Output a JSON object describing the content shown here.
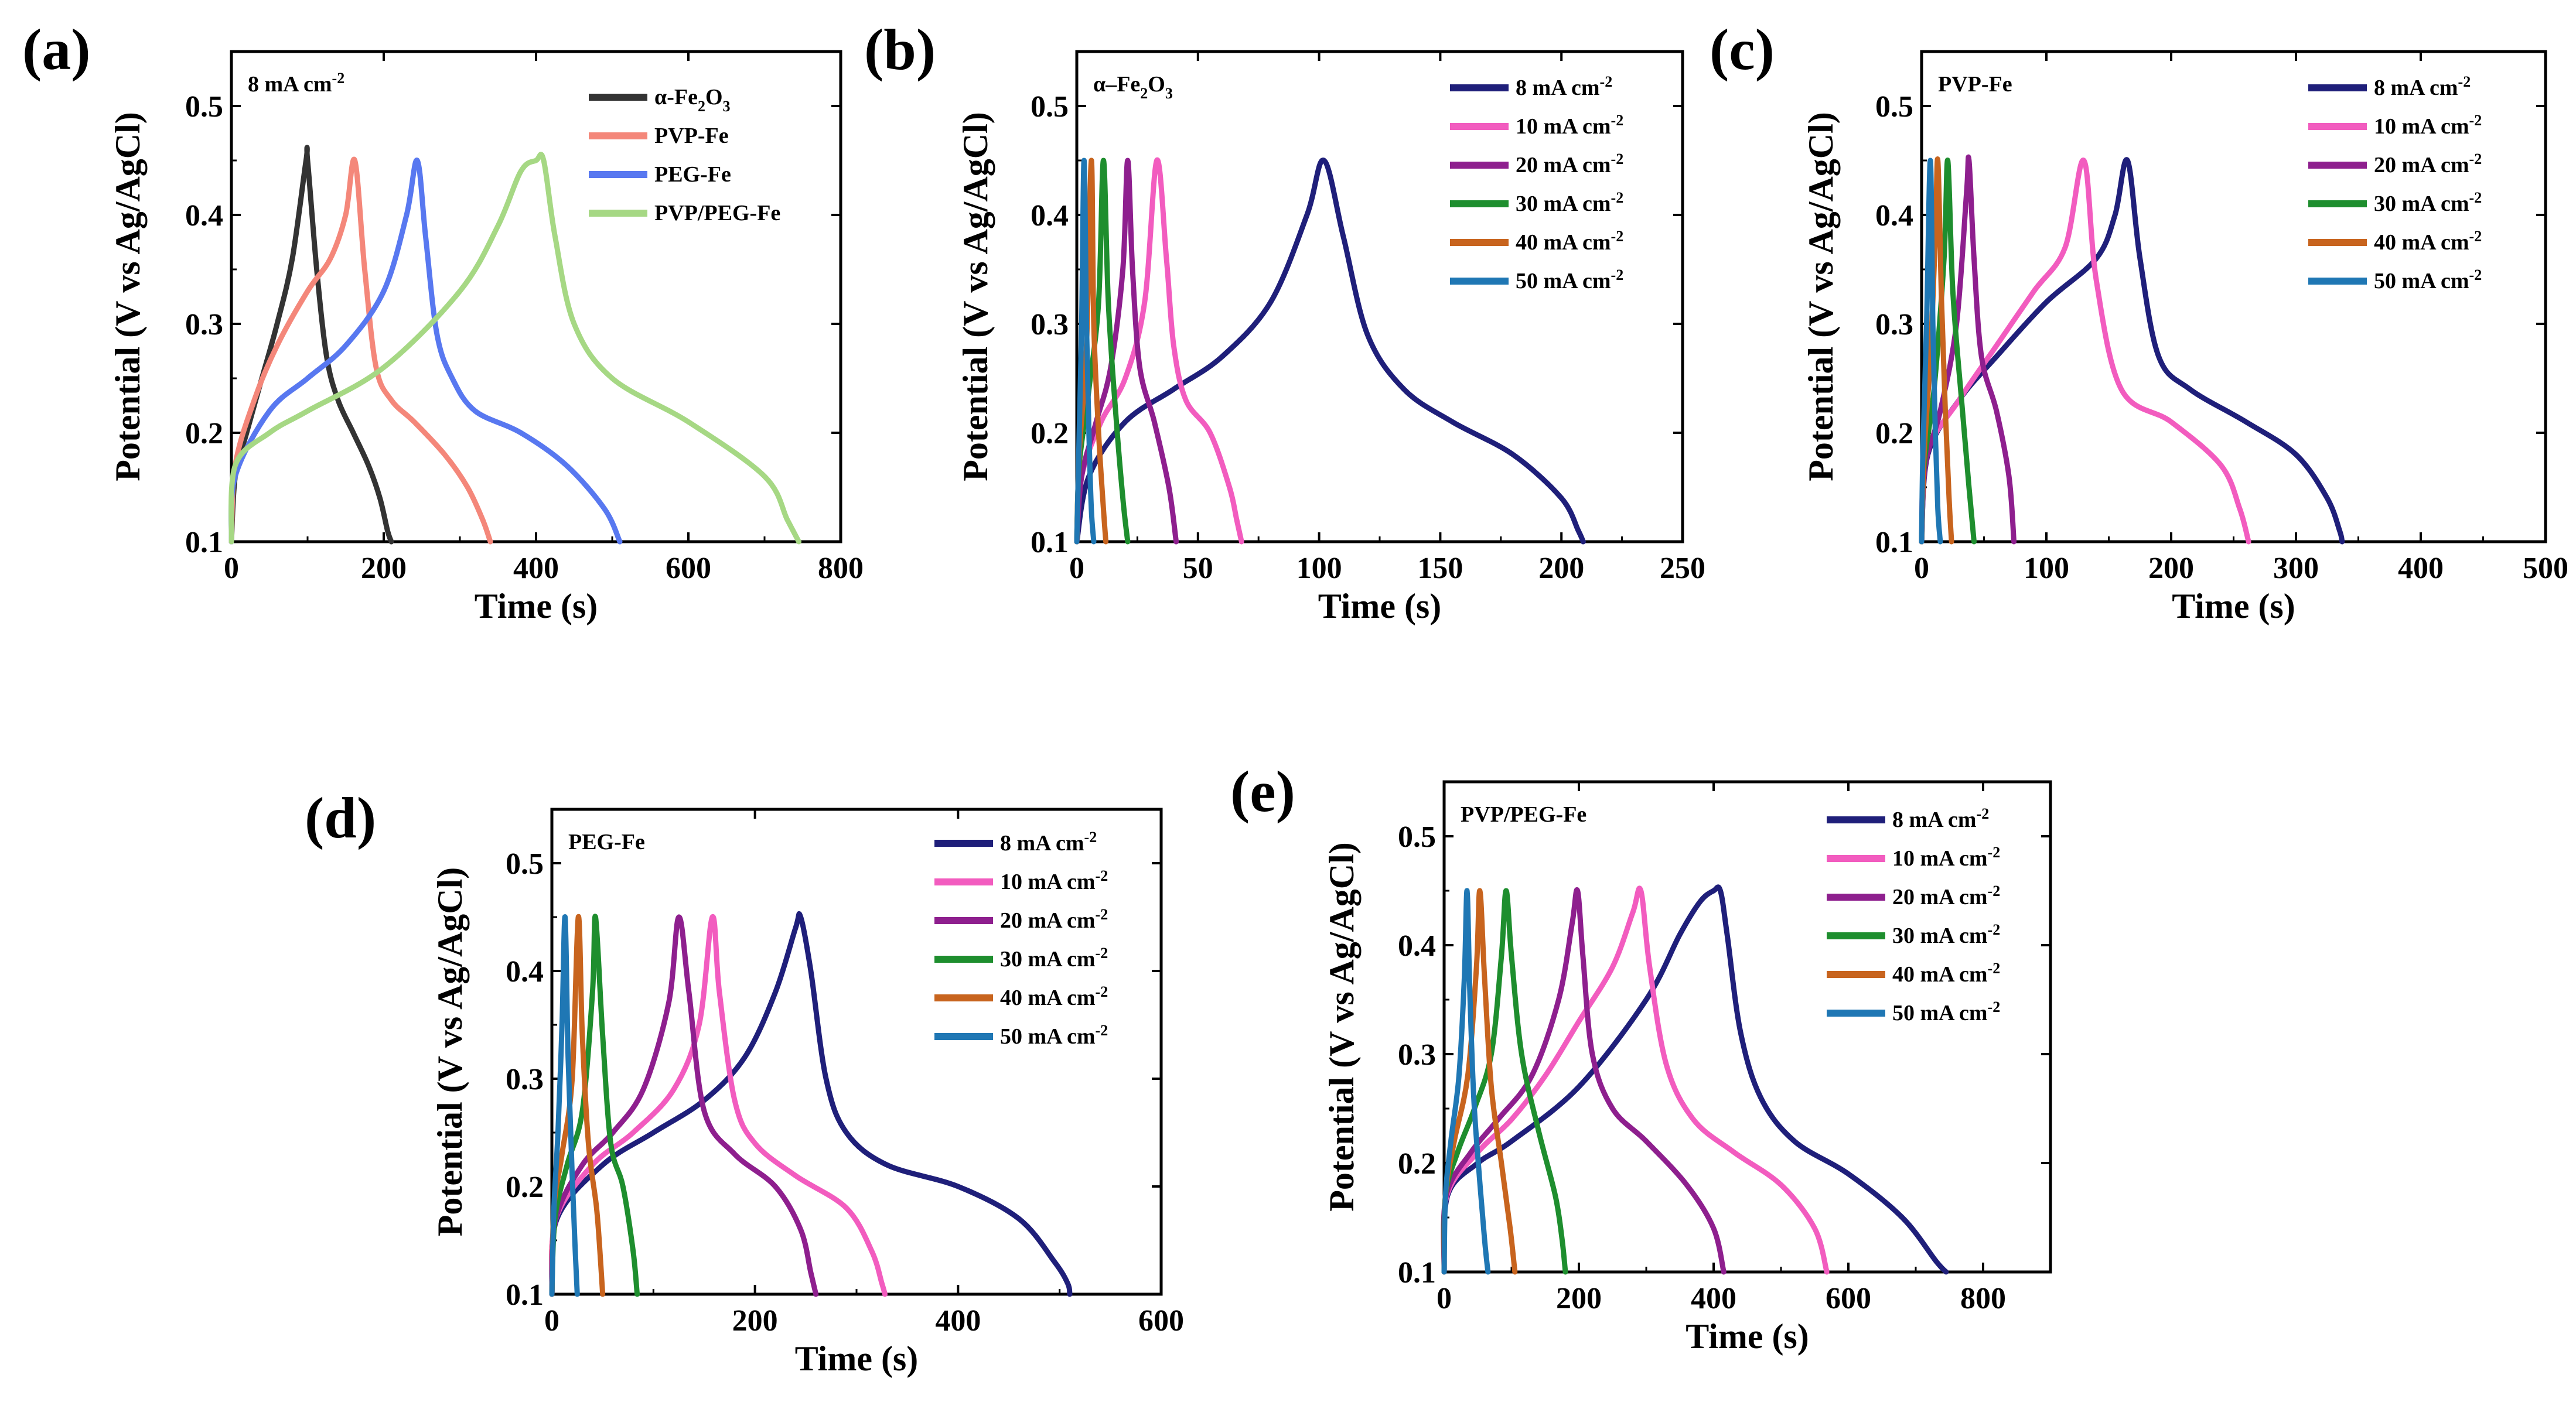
{
  "chart_data": [
    {
      "type": "line",
      "panel_label": "(a)",
      "annotation": "8 mA cm⁻²",
      "xlabel": "Time (s)",
      "ylabel": "Potential (V vs Ag/AgCl)",
      "xlim": [
        0,
        800
      ],
      "ylim": [
        0.1,
        0.55
      ],
      "xticks": [
        0,
        200,
        400,
        600,
        800
      ],
      "yticks": [
        0.1,
        0.2,
        0.3,
        0.4,
        0.5
      ],
      "legend_position": "top-right",
      "series": [
        {
          "name": "α-Fe₂O₃",
          "color": "#333333",
          "x": [
            0,
            5,
            20,
            40,
            60,
            80,
            98,
            100,
            112,
            125,
            140,
            160,
            180,
            195,
            205,
            210
          ],
          "y": [
            0.1,
            0.16,
            0.2,
            0.25,
            0.3,
            0.36,
            0.45,
            0.45,
            0.35,
            0.27,
            0.23,
            0.2,
            0.17,
            0.14,
            0.11,
            0.1
          ]
        },
        {
          "name": "PVP-Fe",
          "color": "#F4877A",
          "x": [
            0,
            5,
            30,
            60,
            100,
            130,
            150,
            162,
            175,
            190,
            210,
            240,
            280,
            310,
            330,
            340
          ],
          "y": [
            0.1,
            0.17,
            0.23,
            0.28,
            0.33,
            0.36,
            0.4,
            0.45,
            0.35,
            0.26,
            0.23,
            0.21,
            0.18,
            0.15,
            0.12,
            0.1
          ]
        },
        {
          "name": "PEG-Fe",
          "color": "#5878F0",
          "x": [
            0,
            5,
            50,
            100,
            150,
            200,
            230,
            244,
            255,
            270,
            290,
            320,
            380,
            440,
            490,
            510
          ],
          "y": [
            0.1,
            0.16,
            0.22,
            0.25,
            0.28,
            0.33,
            0.4,
            0.45,
            0.38,
            0.29,
            0.25,
            0.22,
            0.2,
            0.17,
            0.13,
            0.1
          ]
        },
        {
          "name": "PVP/PEG-Fe",
          "color": "#A6D884",
          "x": [
            0,
            5,
            50,
            100,
            200,
            300,
            350,
            380,
            400,
            410,
            425,
            450,
            500,
            600,
            700,
            730,
            745
          ],
          "y": [
            0.1,
            0.17,
            0.2,
            0.22,
            0.26,
            0.33,
            0.39,
            0.44,
            0.45,
            0.45,
            0.38,
            0.3,
            0.25,
            0.21,
            0.16,
            0.12,
            0.1
          ]
        }
      ]
    },
    {
      "type": "line",
      "panel_label": "(b)",
      "annotation": "α–Fe₂O₃",
      "xlabel": "Time (s)",
      "ylabel": "Potential (V vs Ag/AgCl)",
      "xlim": [
        0,
        250
      ],
      "ylim": [
        0.1,
        0.55
      ],
      "xticks": [
        0,
        50,
        100,
        150,
        200,
        250
      ],
      "yticks": [
        0.1,
        0.2,
        0.3,
        0.4,
        0.5
      ],
      "legend_position": "top-right",
      "series": [
        {
          "name": "8 mA cm⁻²",
          "color": "#1F1F7A",
          "x": [
            0,
            5,
            20,
            40,
            60,
            80,
            95,
            102,
            110,
            120,
            135,
            155,
            180,
            200,
            207,
            209
          ],
          "y": [
            0.1,
            0.16,
            0.21,
            0.24,
            0.27,
            0.32,
            0.4,
            0.45,
            0.38,
            0.29,
            0.24,
            0.21,
            0.18,
            0.14,
            0.11,
            0.1
          ]
        },
        {
          "name": "10 mA cm⁻²",
          "color": "#F25CBF",
          "x": [
            0,
            2,
            10,
            20,
            28,
            33,
            37,
            40,
            45,
            55,
            63,
            66,
            68
          ],
          "y": [
            0.1,
            0.16,
            0.21,
            0.25,
            0.32,
            0.45,
            0.36,
            0.28,
            0.23,
            0.2,
            0.15,
            0.12,
            0.1
          ]
        },
        {
          "name": "20 mA cm⁻²",
          "color": "#8E1F8E",
          "x": [
            0,
            2,
            8,
            14,
            19,
            21,
            23,
            26,
            32,
            38,
            41
          ],
          "y": [
            0.1,
            0.16,
            0.21,
            0.26,
            0.35,
            0.45,
            0.35,
            0.26,
            0.21,
            0.15,
            0.1
          ]
        },
        {
          "name": "30 mA cm⁻²",
          "color": "#1E8E2E",
          "x": [
            0,
            1,
            5,
            9,
            11,
            13,
            16,
            19,
            21
          ],
          "y": [
            0.1,
            0.17,
            0.24,
            0.32,
            0.45,
            0.32,
            0.22,
            0.14,
            0.1
          ]
        },
        {
          "name": "40 mA cm⁻²",
          "color": "#C8641E",
          "x": [
            0,
            1,
            4,
            6,
            7,
            9,
            11,
            12
          ],
          "y": [
            0.1,
            0.18,
            0.28,
            0.45,
            0.3,
            0.2,
            0.13,
            0.1
          ]
        },
        {
          "name": "50 mA cm⁻²",
          "color": "#1F77B4",
          "x": [
            0,
            1,
            2,
            3,
            4,
            5,
            6,
            7
          ],
          "y": [
            0.1,
            0.2,
            0.3,
            0.45,
            0.3,
            0.2,
            0.13,
            0.1
          ]
        }
      ]
    },
    {
      "type": "line",
      "panel_label": "(c)",
      "annotation": "PVP-Fe",
      "xlabel": "Time (s)",
      "ylabel": "Potential (V vs Ag/AgCl)",
      "xlim": [
        0,
        500
      ],
      "ylim": [
        0.1,
        0.55
      ],
      "xticks": [
        0,
        100,
        200,
        300,
        400,
        500
      ],
      "yticks": [
        0.1,
        0.2,
        0.3,
        0.4,
        0.5
      ],
      "legend_position": "top-right",
      "series": [
        {
          "name": "8 mA cm⁻²",
          "color": "#1F1F7A",
          "x": [
            0,
            5,
            30,
            60,
            100,
            140,
            155,
            165,
            175,
            190,
            215,
            260,
            300,
            325,
            335,
            337
          ],
          "y": [
            0.1,
            0.18,
            0.23,
            0.27,
            0.32,
            0.36,
            0.4,
            0.45,
            0.36,
            0.27,
            0.24,
            0.21,
            0.18,
            0.14,
            0.11,
            0.1
          ]
        },
        {
          "name": "10 mA cm⁻²",
          "color": "#F25CBF",
          "x": [
            0,
            4,
            30,
            60,
            90,
            115,
            130,
            140,
            160,
            200,
            240,
            255,
            262
          ],
          "y": [
            0.1,
            0.18,
            0.23,
            0.28,
            0.33,
            0.37,
            0.45,
            0.34,
            0.24,
            0.21,
            0.17,
            0.13,
            0.1
          ]
        },
        {
          "name": "20 mA cm⁻²",
          "color": "#8E1F8E",
          "x": [
            0,
            3,
            15,
            28,
            36,
            38,
            42,
            48,
            60,
            70,
            74
          ],
          "y": [
            0.1,
            0.17,
            0.22,
            0.3,
            0.42,
            0.45,
            0.36,
            0.27,
            0.22,
            0.16,
            0.1
          ]
        },
        {
          "name": "30 mA cm⁻²",
          "color": "#1E8E2E",
          "x": [
            0,
            2,
            10,
            18,
            21,
            25,
            32,
            38,
            42
          ],
          "y": [
            0.1,
            0.17,
            0.24,
            0.36,
            0.45,
            0.33,
            0.23,
            0.15,
            0.1
          ]
        },
        {
          "name": "40 mA cm⁻²",
          "color": "#C8641E",
          "x": [
            0,
            2,
            7,
            11,
            13,
            16,
            19,
            22,
            24
          ],
          "y": [
            0.1,
            0.18,
            0.27,
            0.38,
            0.45,
            0.32,
            0.22,
            0.14,
            0.1
          ]
        },
        {
          "name": "50 mA cm⁻²",
          "color": "#1F77B4",
          "x": [
            0,
            1,
            4,
            7,
            9,
            11,
            13,
            15
          ],
          "y": [
            0.1,
            0.18,
            0.3,
            0.45,
            0.3,
            0.2,
            0.13,
            0.1
          ]
        }
      ]
    },
    {
      "type": "line",
      "panel_label": "(d)",
      "annotation": "PEG-Fe",
      "xlabel": "Time (s)",
      "ylabel": "Potential (V vs Ag/AgCl)",
      "xlim": [
        0,
        600
      ],
      "ylim": [
        0.1,
        0.55
      ],
      "xticks": [
        0,
        200,
        400,
        600
      ],
      "yticks": [
        0.1,
        0.2,
        0.3,
        0.4,
        0.5
      ],
      "legend_position": "top-right",
      "series": [
        {
          "name": "8 mA cm⁻²",
          "color": "#1F1F7A",
          "x": [
            0,
            5,
            50,
            100,
            150,
            190,
            220,
            240,
            245,
            255,
            270,
            290,
            330,
            400,
            460,
            495,
            508,
            510
          ],
          "y": [
            0.1,
            0.17,
            0.22,
            0.25,
            0.28,
            0.32,
            0.38,
            0.44,
            0.45,
            0.4,
            0.3,
            0.25,
            0.22,
            0.2,
            0.17,
            0.13,
            0.11,
            0.1
          ]
        },
        {
          "name": "10 mA cm⁻²",
          "color": "#F25CBF",
          "x": [
            0,
            4,
            40,
            80,
            120,
            145,
            158,
            165,
            180,
            200,
            240,
            290,
            315,
            325,
            328
          ],
          "y": [
            0.1,
            0.17,
            0.22,
            0.25,
            0.29,
            0.35,
            0.45,
            0.38,
            0.28,
            0.24,
            0.21,
            0.18,
            0.14,
            0.11,
            0.1
          ]
        },
        {
          "name": "20 mA cm⁻²",
          "color": "#8E1F8E",
          "x": [
            0,
            4,
            30,
            60,
            90,
            115,
            125,
            135,
            150,
            180,
            220,
            245,
            255,
            260
          ],
          "y": [
            0.1,
            0.17,
            0.22,
            0.25,
            0.29,
            0.37,
            0.45,
            0.38,
            0.27,
            0.23,
            0.2,
            0.16,
            0.12,
            0.1
          ]
        },
        {
          "name": "30 mA cm⁻²",
          "color": "#1E8E2E",
          "x": [
            0,
            3,
            15,
            30,
            40,
            43,
            50,
            58,
            70,
            80,
            84
          ],
          "y": [
            0.1,
            0.17,
            0.22,
            0.27,
            0.38,
            0.45,
            0.34,
            0.24,
            0.2,
            0.14,
            0.1
          ]
        },
        {
          "name": "40 mA cm⁻²",
          "color": "#C8641E",
          "x": [
            0,
            2,
            10,
            20,
            26,
            30,
            36,
            44,
            48,
            50
          ],
          "y": [
            0.1,
            0.18,
            0.23,
            0.3,
            0.45,
            0.34,
            0.24,
            0.18,
            0.13,
            0.1
          ]
        },
        {
          "name": "50 mA cm⁻²",
          "color": "#1F77B4",
          "x": [
            0,
            2,
            6,
            10,
            13,
            16,
            20,
            23,
            25
          ],
          "y": [
            0.1,
            0.18,
            0.25,
            0.35,
            0.45,
            0.32,
            0.21,
            0.14,
            0.1
          ]
        }
      ]
    },
    {
      "type": "line",
      "panel_label": "(e)",
      "annotation": "PVP/PEG-Fe",
      "xlabel": "Time (s)",
      "ylabel": "Potential (V vs Ag/AgCl)",
      "xlim": [
        0,
        900
      ],
      "ylim": [
        0.1,
        0.55
      ],
      "xticks": [
        0,
        200,
        400,
        600,
        800
      ],
      "yticks": [
        0.1,
        0.2,
        0.3,
        0.4,
        0.5
      ],
      "legend_position": "top-right",
      "series": [
        {
          "name": "8 mA cm⁻²",
          "color": "#1F1F7A",
          "x": [
            0,
            5,
            50,
            100,
            200,
            300,
            350,
            380,
            400,
            410,
            420,
            440,
            470,
            520,
            600,
            680,
            730,
            745
          ],
          "y": [
            0.1,
            0.17,
            0.2,
            0.22,
            0.27,
            0.35,
            0.41,
            0.44,
            0.45,
            0.45,
            0.41,
            0.32,
            0.26,
            0.22,
            0.19,
            0.15,
            0.11,
            0.1
          ]
        },
        {
          "name": "10 mA cm⁻²",
          "color": "#F25CBF",
          "x": [
            0,
            4,
            50,
            100,
            150,
            200,
            250,
            280,
            292,
            305,
            330,
            370,
            430,
            500,
            550,
            568
          ],
          "y": [
            0.1,
            0.17,
            0.21,
            0.24,
            0.28,
            0.33,
            0.38,
            0.43,
            0.45,
            0.38,
            0.29,
            0.24,
            0.21,
            0.18,
            0.14,
            0.1
          ]
        },
        {
          "name": "20 mA cm⁻²",
          "color": "#8E1F8E",
          "x": [
            0,
            3,
            40,
            80,
            130,
            170,
            190,
            198,
            206,
            220,
            250,
            300,
            360,
            400,
            415
          ],
          "y": [
            0.1,
            0.17,
            0.21,
            0.24,
            0.28,
            0.35,
            0.42,
            0.45,
            0.39,
            0.3,
            0.25,
            0.22,
            0.18,
            0.14,
            0.1
          ]
        },
        {
          "name": "30 mA cm⁻²",
          "color": "#1E8E2E",
          "x": [
            0,
            2,
            20,
            45,
            70,
            85,
            92,
            100,
            115,
            140,
            165,
            175,
            180
          ],
          "y": [
            0.1,
            0.17,
            0.21,
            0.25,
            0.3,
            0.39,
            0.45,
            0.39,
            0.3,
            0.23,
            0.17,
            0.13,
            0.1
          ]
        },
        {
          "name": "40 mA cm⁻²",
          "color": "#C8641E",
          "x": [
            0,
            2,
            15,
            35,
            48,
            53,
            60,
            70,
            85,
            98,
            105
          ],
          "y": [
            0.1,
            0.17,
            0.22,
            0.28,
            0.38,
            0.45,
            0.37,
            0.27,
            0.2,
            0.14,
            0.1
          ]
        },
        {
          "name": "50 mA cm⁻²",
          "color": "#1F77B4",
          "x": [
            0,
            2,
            10,
            22,
            30,
            34,
            38,
            44,
            52,
            60,
            65
          ],
          "y": [
            0.1,
            0.17,
            0.22,
            0.28,
            0.37,
            0.45,
            0.36,
            0.26,
            0.19,
            0.13,
            0.1
          ]
        }
      ]
    }
  ]
}
